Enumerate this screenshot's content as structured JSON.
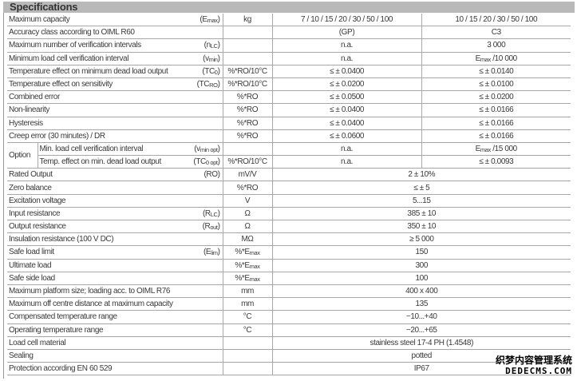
{
  "title": "Specifications",
  "watermark": {
    "line1": "织梦内容管理系统",
    "line2": "DEDECMS.COM"
  },
  "rows": [
    {
      "label": "Maximum capacity",
      "sym": [
        "(E",
        {
          "sub": "max"
        },
        ")"
      ],
      "unit": [
        "kg"
      ],
      "v1": [
        "7 / 10 / 15 / 20 / 30 / 50 / 100"
      ],
      "v2": [
        "10 / 15 / 20 / 30 / 50 / 100"
      ]
    },
    {
      "label": "Accuracy class according to OIML R60",
      "sym": [],
      "unit": [],
      "v1": [
        "(GP)"
      ],
      "v2": [
        "C3"
      ]
    },
    {
      "label": "Maximum number of verification intervals",
      "sym": [
        "(n",
        {
          "sub": "LC"
        },
        ")"
      ],
      "unit": [],
      "v1": [
        "n.a."
      ],
      "v2": [
        "3 000"
      ]
    },
    {
      "label": "Minimum load cell verification interval",
      "sym": [
        "(v",
        {
          "sub": "min"
        },
        ")"
      ],
      "unit": [],
      "v1": [
        "n.a."
      ],
      "v2": [
        "E",
        {
          "sub": "max"
        },
        " /10 000"
      ]
    },
    {
      "label": "Temperature effect on minimum dead load output",
      "sym": [
        "(TC",
        {
          "sub": "0"
        },
        ")"
      ],
      "unit": [
        "%*RO/10°C"
      ],
      "v1": [
        "≤ ± 0.0400"
      ],
      "v2": [
        "≤ ± 0.0140"
      ]
    },
    {
      "label": "Temperature effect on sensitivity",
      "sym": [
        "(TC",
        {
          "sub": "RO"
        },
        ")"
      ],
      "unit": [
        "%*RO/10°C"
      ],
      "v1": [
        "≤ ± 0.0200"
      ],
      "v2": [
        "≤ ± 0.0100"
      ]
    },
    {
      "label": "Combined error",
      "sym": [],
      "unit": [
        "%*RO"
      ],
      "v1": [
        "≤ ± 0.0500"
      ],
      "v2": [
        "≤ ± 0.0200"
      ]
    },
    {
      "label": "Non-linearity",
      "sym": [],
      "unit": [
        "%*RO"
      ],
      "v1": [
        "≤ ± 0.0400"
      ],
      "v2": [
        "≤ ± 0.0166"
      ]
    },
    {
      "label": "Hysteresis",
      "sym": [],
      "unit": [
        "%*RO"
      ],
      "v1": [
        "≤ ± 0.0400"
      ],
      "v2": [
        "≤ ± 0.0166"
      ]
    },
    {
      "label": "Creep error (30 minutes) / DR",
      "sym": [],
      "unit": [
        "%*RO"
      ],
      "v1": [
        "≤ ± 0.0600"
      ],
      "v2": [
        "≤ ± 0.0166"
      ]
    },
    {
      "group": "Option",
      "label": "Min. load cell verification interval",
      "sym": [
        "(v",
        {
          "sub": "min opt"
        },
        ")"
      ],
      "unit": [],
      "v1": [
        "n.a."
      ],
      "v2": [
        "E",
        {
          "sub": "max"
        },
        " /15 000"
      ]
    },
    {
      "group": "Option",
      "label": "Temp. effect on min. dead load output",
      "sym": [
        "(TC",
        {
          "sub": "0 opt"
        },
        ")"
      ],
      "unit": [
        "%*RO/10°C"
      ],
      "v1": [
        "n.a."
      ],
      "v2": [
        "≤ ± 0.0093"
      ]
    },
    {
      "label": "Rated Output",
      "sym": [
        "(RO)"
      ],
      "unit": [
        "mV/V"
      ],
      "span": [
        "2 ± 10%"
      ]
    },
    {
      "label": "Zero balance",
      "sym": [],
      "unit": [
        "%*RO"
      ],
      "span": [
        "≤ ± 5"
      ]
    },
    {
      "label": "Excitation voltage",
      "sym": [],
      "unit": [
        "V"
      ],
      "span": [
        "5...15"
      ]
    },
    {
      "label": "Input resistance",
      "sym": [
        "(R",
        {
          "sub": "LC"
        },
        ")"
      ],
      "unit": [
        "Ω"
      ],
      "span": [
        "385 ± 10"
      ]
    },
    {
      "label": "Output resistance",
      "sym": [
        "(R",
        {
          "sub": "out"
        },
        ")"
      ],
      "unit": [
        "Ω"
      ],
      "span": [
        "350 ± 10"
      ]
    },
    {
      "label": "Insulation resistance (100 V DC)",
      "sym": [],
      "unit": [
        "MΩ"
      ],
      "span": [
        "≥ 5 000"
      ]
    },
    {
      "label": "Safe load limit",
      "sym": [
        "(E",
        {
          "sub": "lim"
        },
        ")"
      ],
      "unit": [
        "%*E",
        {
          "sub": "max"
        }
      ],
      "span": [
        "150"
      ]
    },
    {
      "label": "Ultimate load",
      "sym": [],
      "unit": [
        "%*E",
        {
          "sub": "max"
        }
      ],
      "span": [
        "300"
      ]
    },
    {
      "label": "Safe side load",
      "sym": [],
      "unit": [
        "%*E",
        {
          "sub": "max"
        }
      ],
      "span": [
        "100"
      ]
    },
    {
      "label": "Maximum platform size; loading acc. to OIML R76",
      "sym": [],
      "unit": [
        "mm"
      ],
      "span": [
        "400 x 400"
      ]
    },
    {
      "label": "Maximum off centre distance at maximum capacity",
      "sym": [],
      "unit": [
        "mm"
      ],
      "span": [
        "135"
      ]
    },
    {
      "label": "Compensated temperature range",
      "sym": [],
      "unit": [
        "°C"
      ],
      "span": [
        "−10...+40"
      ]
    },
    {
      "label": "Operating temperature range",
      "sym": [],
      "unit": [
        "°C"
      ],
      "span": [
        "−20...+65"
      ]
    },
    {
      "label": "Load cell material",
      "sym": [],
      "unit": [],
      "span": [
        "stainless steel 17-4 PH (1.4548)"
      ]
    },
    {
      "label": "Sealing",
      "sym": [],
      "unit": [],
      "span": [
        "potted"
      ]
    },
    {
      "label": "Protection according EN 60 529",
      "sym": [],
      "unit": [],
      "span": [
        "IP67"
      ]
    }
  ]
}
